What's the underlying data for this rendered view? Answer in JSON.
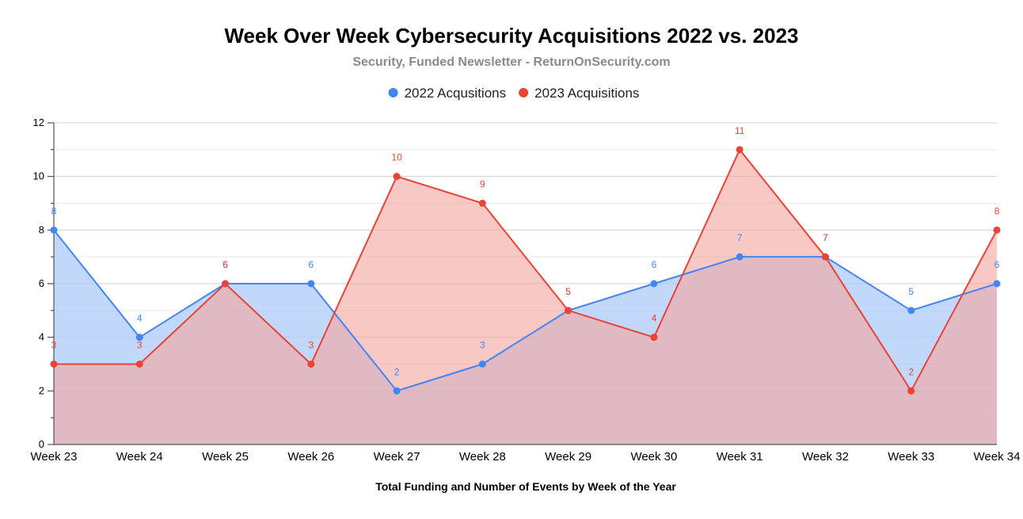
{
  "chart_data": {
    "type": "area",
    "title": "Week Over Week Cybersecurity Acquisitions 2022 vs. 2023",
    "subtitle": "Security, Funded Newsletter - ReturnOnSecurity.com",
    "xlabel": "Total Funding and Number of Events by Week of the Year",
    "ylabel": "",
    "categories": [
      "Week 23",
      "Week 24",
      "Week 25",
      "Week 26",
      "Week 27",
      "Week 28",
      "Week 29",
      "Week 30",
      "Week 31",
      "Week 32",
      "Week 33",
      "Week 34"
    ],
    "ylim": [
      0,
      12
    ],
    "yticks": [
      "0",
      "2",
      "4",
      "6",
      "8",
      "10",
      "12"
    ],
    "legend_position": "top-center",
    "series": [
      {
        "name": "2022 Acqusitions",
        "color": "#4285f4",
        "fill": "#aecbfa",
        "values": [
          8,
          4,
          6,
          6,
          2,
          3,
          5,
          6,
          7,
          7,
          5,
          6
        ]
      },
      {
        "name": "2023 Acquisitions",
        "color": "#ea4335",
        "fill": "#f4a59d",
        "values": [
          3,
          3,
          6,
          3,
          10,
          9,
          5,
          4,
          11,
          7,
          2,
          8
        ]
      }
    ]
  }
}
